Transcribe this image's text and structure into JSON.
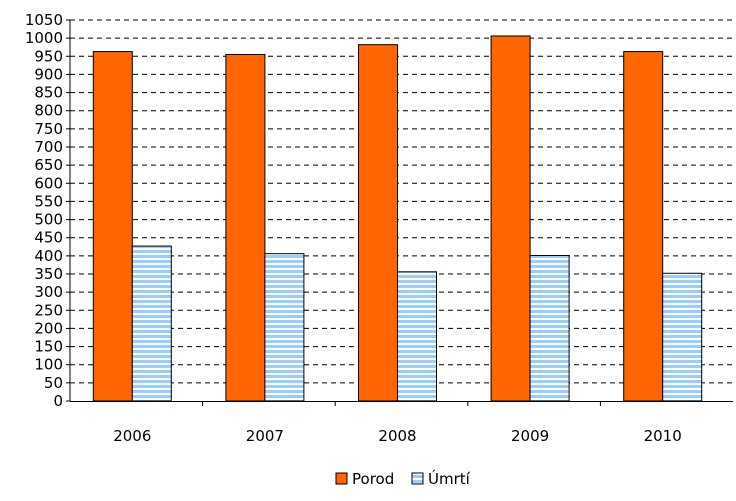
{
  "chart_data": {
    "type": "bar",
    "categories": [
      "2006",
      "2007",
      "2008",
      "2009",
      "2010"
    ],
    "series": [
      {
        "name": "Porod",
        "values": [
          963,
          955,
          982,
          1006,
          963
        ],
        "color": "#ff6600",
        "pattern": "solid"
      },
      {
        "name": "Úmrtí",
        "values": [
          427,
          406,
          356,
          401,
          352
        ],
        "color": "#99ccff",
        "pattern": "horizontal-stripes"
      }
    ],
    "yticks": [
      "0",
      "50",
      "100",
      "150",
      "200",
      "250",
      "300",
      "350",
      "400",
      "450",
      "500",
      "550",
      "600",
      "650",
      "700",
      "750",
      "800",
      "850",
      "900",
      "950",
      "1000",
      "1050"
    ],
    "ylim": [
      0,
      1050
    ],
    "grid": true,
    "legend_position": "bottom",
    "title": "",
    "xlabel": "",
    "ylabel": ""
  }
}
